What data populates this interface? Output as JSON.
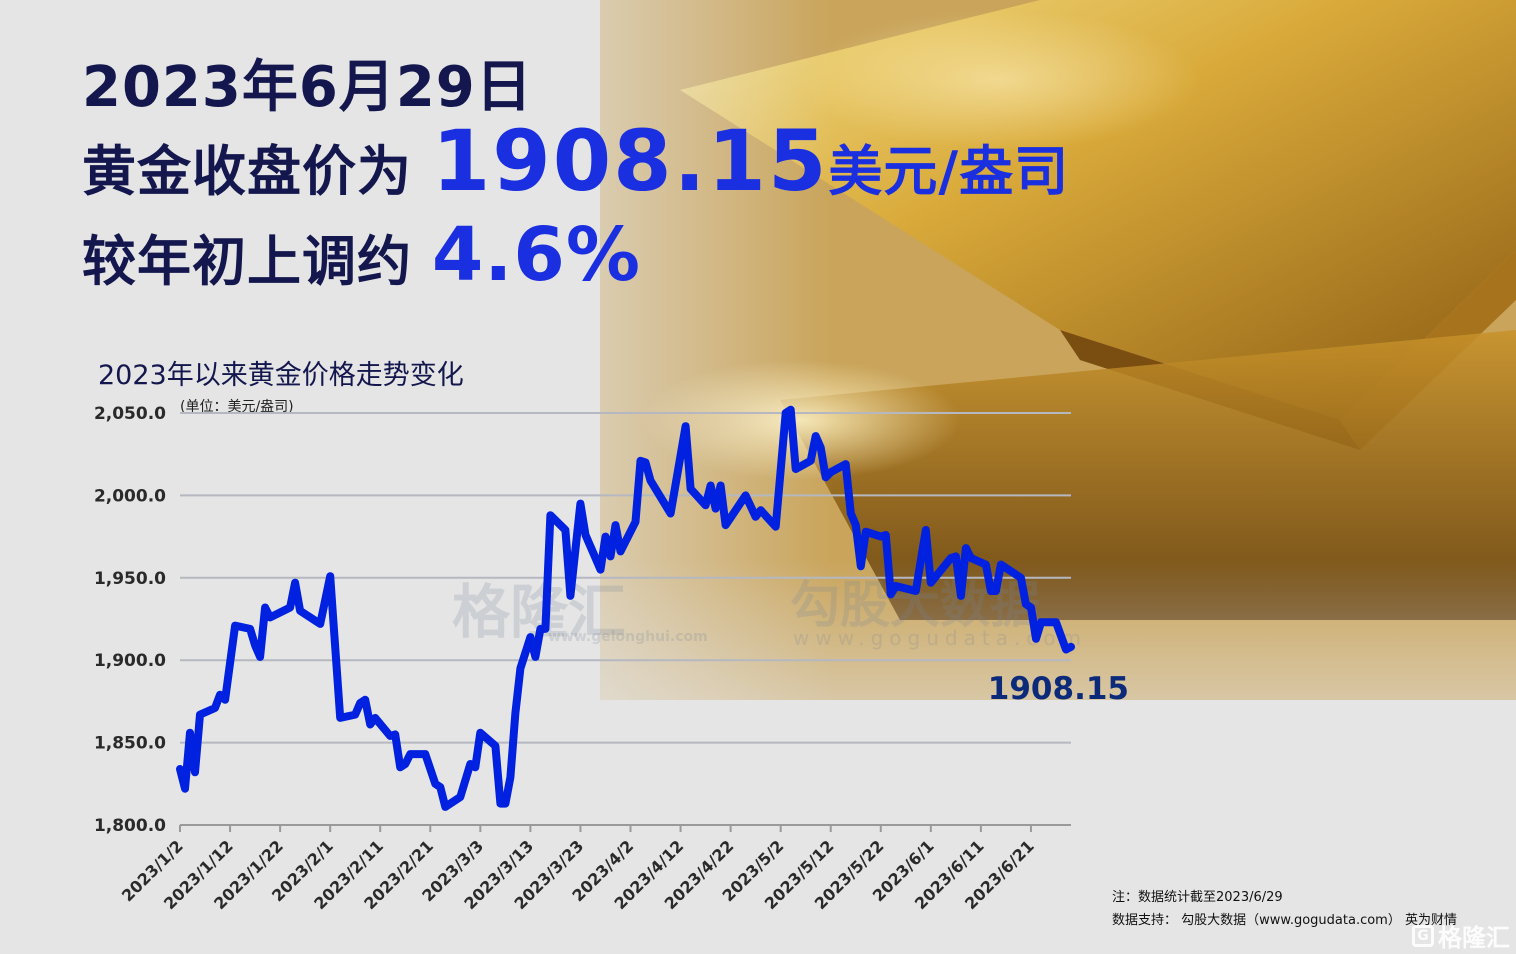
{
  "headline": {
    "date": "2023年6月29日",
    "line2_prefix": "黄金收盘价为 ",
    "price": "1908.15",
    "price_unit": "美元/盎司",
    "line3_prefix": "较年初上调约 ",
    "change": "4.6%"
  },
  "colors": {
    "navy": "#13174d",
    "accent_blue": "#1a2fe0",
    "line": "#0022e0",
    "end_label": "#0b2a7a"
  },
  "watermarks": {
    "gelonghui": "格隆汇",
    "gelonghui_url": "www.gelonghui.com",
    "gogudata": "勾股大数据",
    "gogudata_url": "www.gogudata.com"
  },
  "chart_data": {
    "type": "line",
    "title": "2023年以来黄金价格走势变化",
    "unit_label": "(单位：美元/盎司)",
    "ylim": [
      1800,
      2050
    ],
    "yticks": [
      "2,050.0",
      "2,000.0",
      "1,950.0",
      "1,900.0",
      "1,850.0",
      "1,800.0"
    ],
    "ytick_values": [
      2050,
      2000,
      1950,
      1900,
      1850,
      1800
    ],
    "xlim": [
      "2023-01-02",
      "2023-06-29"
    ],
    "xticks": [
      "2023/1/2",
      "2023/1/12",
      "2023/1/22",
      "2023/2/1",
      "2023/2/11",
      "2023/2/21",
      "2023/3/3",
      "2023/3/13",
      "2023/3/23",
      "2023/4/2",
      "2023/4/12",
      "2023/4/22",
      "2023/5/2",
      "2023/5/12",
      "2023/5/22",
      "2023/6/1",
      "2023/6/11",
      "2023/6/21"
    ],
    "grid": true,
    "end_label": "1908.15",
    "series": [
      {
        "points": [
          [
            "2023-01-02",
            1834
          ],
          [
            "2023-01-03",
            1822
          ],
          [
            "2023-01-04",
            1856
          ],
          [
            "2023-01-05",
            1832
          ],
          [
            "2023-01-06",
            1867
          ],
          [
            "2023-01-09",
            1871
          ],
          [
            "2023-01-10",
            1879
          ],
          [
            "2023-01-11",
            1876
          ],
          [
            "2023-01-13",
            1921
          ],
          [
            "2023-01-16",
            1919
          ],
          [
            "2023-01-17",
            1909
          ],
          [
            "2023-01-18",
            1902
          ],
          [
            "2023-01-19",
            1932
          ],
          [
            "2023-01-20",
            1926
          ],
          [
            "2023-01-24",
            1932
          ],
          [
            "2023-01-25",
            1947
          ],
          [
            "2023-01-26",
            1930
          ],
          [
            "2023-01-30",
            1922
          ],
          [
            "2023-02-01",
            1951
          ],
          [
            "2023-02-03",
            1865
          ],
          [
            "2023-02-06",
            1867
          ],
          [
            "2023-02-07",
            1874
          ],
          [
            "2023-02-08",
            1876
          ],
          [
            "2023-02-09",
            1861
          ],
          [
            "2023-02-10",
            1865
          ],
          [
            "2023-02-13",
            1854
          ],
          [
            "2023-02-14",
            1855
          ],
          [
            "2023-02-15",
            1835
          ],
          [
            "2023-02-16",
            1837
          ],
          [
            "2023-02-17",
            1843
          ],
          [
            "2023-02-20",
            1843
          ],
          [
            "2023-02-22",
            1825
          ],
          [
            "2023-02-23",
            1823
          ],
          [
            "2023-02-24",
            1811
          ],
          [
            "2023-02-27",
            1817
          ],
          [
            "2023-03-01",
            1837
          ],
          [
            "2023-03-02",
            1835
          ],
          [
            "2023-03-03",
            1856
          ],
          [
            "2023-03-06",
            1848
          ],
          [
            "2023-03-07",
            1813
          ],
          [
            "2023-03-08",
            1813
          ],
          [
            "2023-03-09",
            1829
          ],
          [
            "2023-03-10",
            1868
          ],
          [
            "2023-03-11",
            1895
          ],
          [
            "2023-03-13",
            1914
          ],
          [
            "2023-03-14",
            1902
          ],
          [
            "2023-03-15",
            1919
          ],
          [
            "2023-03-16",
            1919
          ],
          [
            "2023-03-17",
            1988
          ],
          [
            "2023-03-20",
            1979
          ],
          [
            "2023-03-21",
            1939
          ],
          [
            "2023-03-23",
            1995
          ],
          [
            "2023-03-24",
            1976
          ],
          [
            "2023-03-27",
            1955
          ],
          [
            "2023-03-28",
            1975
          ],
          [
            "2023-03-29",
            1963
          ],
          [
            "2023-03-30",
            1982
          ],
          [
            "2023-03-31",
            1966
          ],
          [
            "2023-04-03",
            1984
          ],
          [
            "2023-04-04",
            2021
          ],
          [
            "2023-04-05",
            2020
          ],
          [
            "2023-04-06",
            2009
          ],
          [
            "2023-04-10",
            1989
          ],
          [
            "2023-04-13",
            2042
          ],
          [
            "2023-04-14",
            2004
          ],
          [
            "2023-04-17",
            1994
          ],
          [
            "2023-04-18",
            2006
          ],
          [
            "2023-04-19",
            1992
          ],
          [
            "2023-04-20",
            2006
          ],
          [
            "2023-04-21",
            1982
          ],
          [
            "2023-04-25",
            2000
          ],
          [
            "2023-04-27",
            1987
          ],
          [
            "2023-04-28",
            1991
          ],
          [
            "2023-05-01",
            1981
          ],
          [
            "2023-05-03",
            2050
          ],
          [
            "2023-05-04",
            2052
          ],
          [
            "2023-05-05",
            2016
          ],
          [
            "2023-05-08",
            2021
          ],
          [
            "2023-05-09",
            2036
          ],
          [
            "2023-05-10",
            2029
          ],
          [
            "2023-05-11",
            2011
          ],
          [
            "2023-05-12",
            2014
          ],
          [
            "2023-05-15",
            2019
          ],
          [
            "2023-05-16",
            1989
          ],
          [
            "2023-05-17",
            1982
          ],
          [
            "2023-05-18",
            1957
          ],
          [
            "2023-05-19",
            1978
          ],
          [
            "2023-05-22",
            1975
          ],
          [
            "2023-05-23",
            1976
          ],
          [
            "2023-05-24",
            1940
          ],
          [
            "2023-05-25",
            1945
          ],
          [
            "2023-05-29",
            1942
          ],
          [
            "2023-05-31",
            1979
          ],
          [
            "2023-06-01",
            1947
          ],
          [
            "2023-06-05",
            1962
          ],
          [
            "2023-06-06",
            1963
          ],
          [
            "2023-06-07",
            1939
          ],
          [
            "2023-06-08",
            1968
          ],
          [
            "2023-06-09",
            1962
          ],
          [
            "2023-06-12",
            1958
          ],
          [
            "2023-06-13",
            1942
          ],
          [
            "2023-06-14",
            1942
          ],
          [
            "2023-06-15",
            1958
          ],
          [
            "2023-06-19",
            1950
          ],
          [
            "2023-06-20",
            1934
          ],
          [
            "2023-06-21",
            1932
          ],
          [
            "2023-06-22",
            1913
          ],
          [
            "2023-06-23",
            1923
          ],
          [
            "2023-06-26",
            1923
          ],
          [
            "2023-06-28",
            1906.5
          ],
          [
            "2023-06-29",
            1908.15
          ]
        ]
      }
    ]
  },
  "footer": {
    "note": "注：数据统计截至2023/6/29",
    "source": "数据支持： 勾股大数据（www.gogudata.com） 英为财情",
    "logo": "格隆汇"
  }
}
